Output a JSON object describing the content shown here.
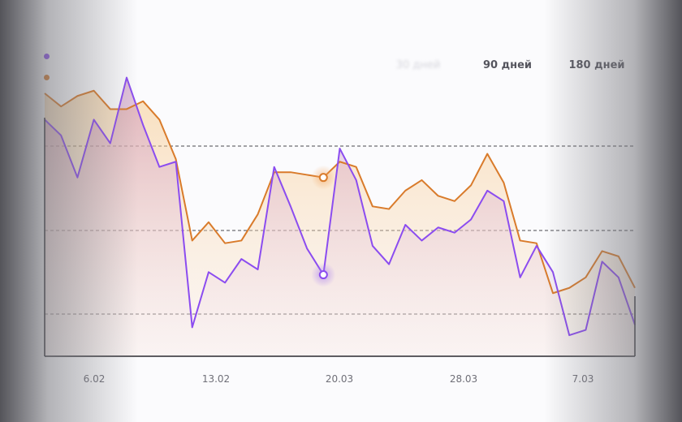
{
  "ranges": {
    "muted_label": "30 дней",
    "items": [
      "90 дней",
      "180 дней"
    ]
  },
  "legend": {
    "items": [
      {
        "label": "",
        "color": "#8b4cf0"
      },
      {
        "label": "",
        "color": "#d97b2b"
      }
    ]
  },
  "colors": {
    "series_a": "#8b4cf0",
    "series_b": "#d97b2b",
    "axis": "#2b2b30",
    "grid": "#4a4a50"
  },
  "chart_data": {
    "type": "line",
    "x_tick_labels": [
      "6.02",
      "13.02",
      "20.03",
      "28.03",
      "7.03"
    ],
    "x": [
      0,
      1,
      2,
      3,
      4,
      5,
      6,
      7,
      8,
      9,
      10,
      11,
      12,
      13,
      14,
      15,
      16,
      17,
      18,
      19,
      20,
      21,
      22,
      23,
      24,
      25,
      26,
      27,
      28,
      29,
      30,
      31,
      32,
      33,
      34,
      35,
      36
    ],
    "ylim": [
      0,
      100
    ],
    "grid": true,
    "series": [
      {
        "values": [
          90,
          84,
          68,
          90,
          81,
          106,
          88,
          72,
          74,
          11,
          32,
          28,
          37,
          33,
          72,
          57,
          41,
          31,
          79,
          67,
          42,
          35,
          50,
          44,
          49,
          47,
          52,
          63,
          59,
          30,
          42,
          32,
          8,
          10,
          36,
          30,
          12
        ]
      },
      {
        "values": [
          100,
          95,
          99,
          101,
          94,
          94,
          97,
          90,
          75,
          44,
          51,
          43,
          44,
          54,
          70,
          70,
          69,
          68,
          74,
          72,
          57,
          56,
          63,
          67,
          61,
          59,
          65,
          77,
          66,
          44,
          43,
          24,
          26,
          30,
          40,
          38,
          26
        ]
      }
    ],
    "highlight_points": [
      {
        "series": 0,
        "index": 17
      },
      {
        "series": 1,
        "index": 17
      }
    ]
  }
}
